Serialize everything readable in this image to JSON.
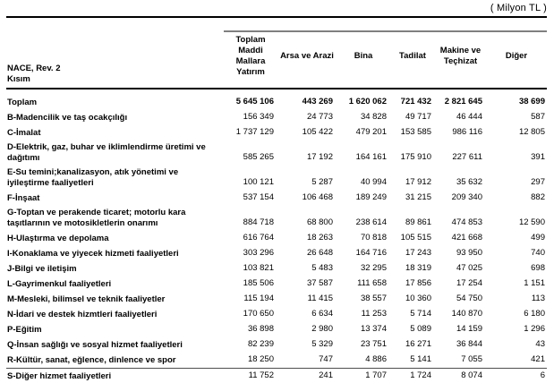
{
  "unit_label": "( Milyon TL )",
  "colors": {
    "rule": "#000000",
    "spanner_line": "#7f7f7f",
    "text": "#000000",
    "background": "#ffffff"
  },
  "table": {
    "row_header": {
      "line1": "NACE, Rev. 2",
      "line2": "Kısım"
    },
    "columns": [
      "Toplam Maddi Mallara Yatırım",
      "Arsa ve Arazi",
      "Bina",
      "Tadilat",
      "Makine ve Teçhizat",
      "Diğer"
    ],
    "rows": [
      {
        "label": "Toplam",
        "emphasis": true,
        "values": [
          "5 645 106",
          "443 269",
          "1 620 062",
          "721 432",
          "2 821 645",
          "38 699"
        ]
      },
      {
        "label": "B-Madencilik ve taş ocakçılığı",
        "values": [
          "156 349",
          "24 773",
          "34 828",
          "49 717",
          "46 444",
          "587"
        ]
      },
      {
        "label": "C-İmalat",
        "values": [
          "1 737 129",
          "105 422",
          "479 201",
          "153 585",
          "986 116",
          "12 805"
        ]
      },
      {
        "label": "D-Elektrik, gaz, buhar ve iklimlendirme üretimi ve dağıtımı",
        "values": [
          "585 265",
          "17 192",
          "164 161",
          "175 910",
          "227 611",
          "391"
        ]
      },
      {
        "label": "E-Su temini;kanalizasyon, atık yönetimi ve iyileştirme faaliyetleri",
        "values": [
          "100 121",
          "5 287",
          "40 994",
          "17 912",
          "35 632",
          "297"
        ]
      },
      {
        "label": "F-İnşaat",
        "values": [
          "537 154",
          "106 468",
          "189 249",
          "31 215",
          "209 340",
          "882"
        ]
      },
      {
        "label": "G-Toptan ve perakende ticaret; motorlu kara taşıtlarının ve motosikletlerin onarımı",
        "values": [
          "884 718",
          "68 800",
          "238 614",
          "89 861",
          "474 853",
          "12 590"
        ]
      },
      {
        "label": "H-Ulaştırma ve depolama",
        "values": [
          "616 764",
          "18 263",
          "70 818",
          "105 515",
          "421 668",
          "499"
        ]
      },
      {
        "label": "I-Konaklama ve yiyecek hizmeti faaliyetleri",
        "values": [
          "303 296",
          "26 648",
          "164 716",
          "17 243",
          "93 950",
          "740"
        ]
      },
      {
        "label": "J-Bilgi ve iletişim",
        "values": [
          "103 821",
          "5 483",
          "32 295",
          "18 319",
          "47 025",
          "698"
        ]
      },
      {
        "label": "L-Gayrimenkul faaliyetleri",
        "values": [
          "185 506",
          "37 587",
          "111 658",
          "17 856",
          "17 254",
          "1 151"
        ]
      },
      {
        "label": "M-Mesleki, bilimsel ve teknik faaliyetler",
        "values": [
          "115 194",
          "11 415",
          "38 557",
          "10 360",
          "54 750",
          "113"
        ]
      },
      {
        "label": "N-İdari ve destek hizmtleri faaliyetleri",
        "values": [
          "170 650",
          "6 634",
          "11 253",
          "5 714",
          "140 870",
          "6 180"
        ]
      },
      {
        "label": "P-Eğitim",
        "values": [
          "36 898",
          "2 980",
          "13 374",
          "5 089",
          "14 159",
          "1 296"
        ]
      },
      {
        "label": "Q-İnsan sağlığı ve sosyal hizmet faaliyetleri",
        "values": [
          "82 239",
          "5 329",
          "23 751",
          "16 271",
          "36 844",
          "43"
        ]
      },
      {
        "label": "R-Kültür, sanat, eğlence, dinlence ve spor",
        "values": [
          "18 250",
          "747",
          "4 886",
          "5 141",
          "7 055",
          "421"
        ]
      },
      {
        "label": "S-Diğer hizmet faaliyetleri",
        "separator_above": true,
        "values": [
          "11 752",
          "241",
          "1 707",
          "1 724",
          "8 074",
          "6"
        ]
      }
    ]
  }
}
